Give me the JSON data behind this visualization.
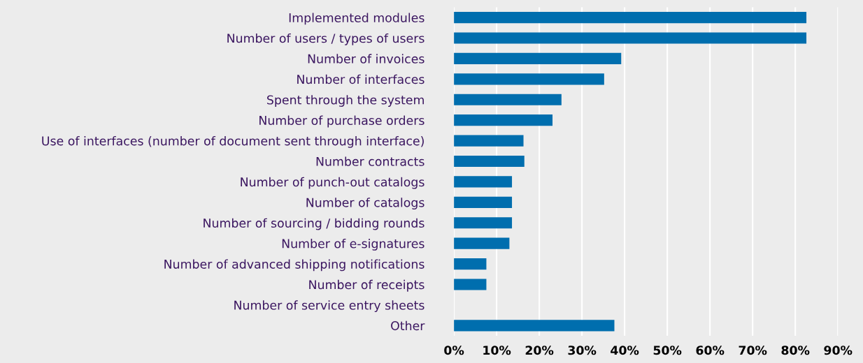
{
  "chart_data": {
    "type": "bar",
    "orientation": "horizontal",
    "categories": [
      "Implemented modules",
      "Number of users / types of users",
      "Number of invoices",
      "Number of interfaces",
      "Spent through the system",
      "Number of purchase orders",
      "Use of interfaces (number of document sent through interface)",
      "Number contracts",
      "Number of punch-out catalogs",
      "Number of catalogs",
      "Number of sourcing / bidding rounds",
      "Number of e-signatures",
      "Number of advanced shipping notifications",
      "Number of receipts",
      "Number of service entry sheets",
      "Other"
    ],
    "values": [
      82.6,
      82.6,
      39.2,
      35.2,
      25.2,
      23.1,
      16.3,
      16.5,
      13.6,
      13.6,
      13.6,
      13.0,
      7.6,
      7.6,
      0,
      37.6
    ],
    "color": "#006eae",
    "xlim": [
      0,
      90
    ],
    "xticks": [
      {
        "value": 0,
        "label": "0%"
      },
      {
        "value": 10,
        "label": "10%"
      },
      {
        "value": 20,
        "label": "20%"
      },
      {
        "value": 30,
        "label": "30%"
      },
      {
        "value": 40,
        "label": "40%"
      },
      {
        "value": 50,
        "label": "50%"
      },
      {
        "value": 60,
        "label": "60%"
      },
      {
        "value": 70,
        "label": "70%"
      },
      {
        "value": 80,
        "label": "80%"
      },
      {
        "value": 90,
        "label": "90%"
      }
    ],
    "grid": "x",
    "legend": false
  }
}
